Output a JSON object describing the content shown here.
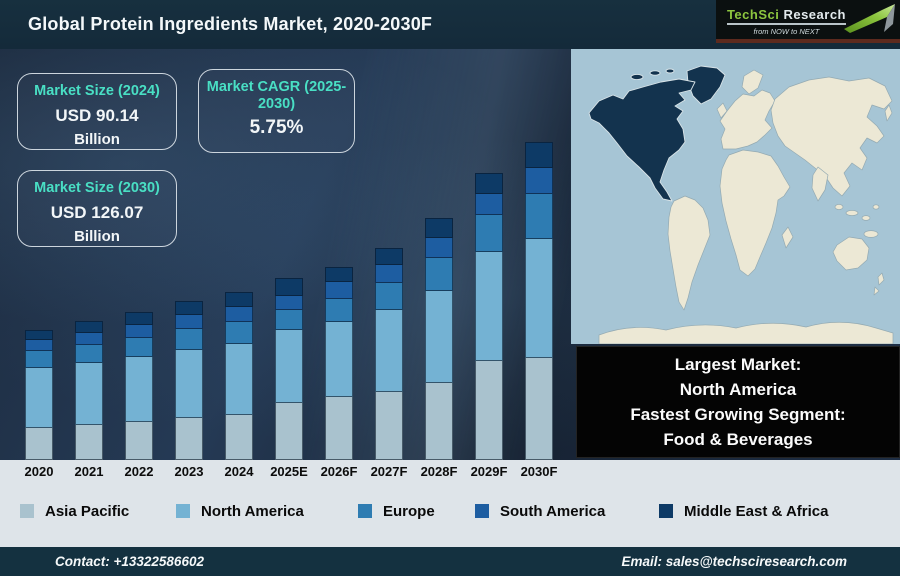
{
  "header": {
    "title": "Global Protein Ingredients Market, 2020-2030F"
  },
  "logo": {
    "brand_primary": "TechSci",
    "brand_secondary": "Research",
    "tagline": "from NOW to NEXT"
  },
  "info_boxes": [
    {
      "label": "Market Size (2024)",
      "value": "USD 90.14",
      "unit": "Billion"
    },
    {
      "label": "Market CAGR (2025-2030)",
      "value": "5.75%",
      "unit": ""
    },
    {
      "label": "Market Size (2030)",
      "value": "USD 126.07",
      "unit": "Billion"
    }
  ],
  "highlight_box": {
    "line1": "Largest Market:",
    "line2": "North America",
    "line3": "Fastest Growing Segment:",
    "line4": "Food & Beverages"
  },
  "chart_data": {
    "type": "bar",
    "stacked": true,
    "title": "Global Protein Ingredients Market, 2020-2030F",
    "xlabel": "",
    "ylabel": "",
    "grid": false,
    "legend_position": "bottom",
    "categories": [
      "2020",
      "2021",
      "2022",
      "2023",
      "2024",
      "2025E",
      "2026F",
      "2027F",
      "2028F",
      "2029F",
      "2030F"
    ],
    "values_unit": "relative bar-segment heights in pixels (y-axis not labeled in source)",
    "series": [
      {
        "name": "Asia Pacific",
        "color": "#a9c2ce",
        "values": [
          32,
          35,
          38,
          42,
          45,
          57,
          63,
          68,
          77,
          99,
          102
        ]
      },
      {
        "name": "North America",
        "color": "#74b2d3",
        "values": [
          60,
          62,
          65,
          68,
          71,
          73,
          75,
          82,
          92,
          109,
          119
        ]
      },
      {
        "name": "Europe",
        "color": "#2e7cb2",
        "values": [
          17,
          18,
          19,
          21,
          22,
          20,
          23,
          27,
          33,
          37,
          45
        ]
      },
      {
        "name": "South America",
        "color": "#1d5da1",
        "values": [
          11,
          12,
          13,
          14,
          15,
          14,
          17,
          18,
          20,
          21,
          26
        ]
      },
      {
        "name": "Middle East & Africa",
        "color": "#0d3a66",
        "values": [
          10,
          12,
          13,
          14,
          15,
          18,
          15,
          17,
          20,
          21,
          26
        ]
      }
    ],
    "known_points": [
      {
        "year": "2024",
        "total": "USD 90.14 Billion"
      },
      {
        "year": "2030",
        "total": "USD 126.07 Billion"
      },
      {
        "cagr_2025_2030": "5.75%"
      }
    ]
  },
  "map": {
    "highlighted_region": "North America",
    "ocean_color": "#a6c5d5",
    "land_color": "#ece8d5",
    "highlight_color": "#13334e"
  },
  "footer": {
    "contact": "Contact: +13322586602",
    "email": "Email: sales@techsciresearch.com"
  }
}
